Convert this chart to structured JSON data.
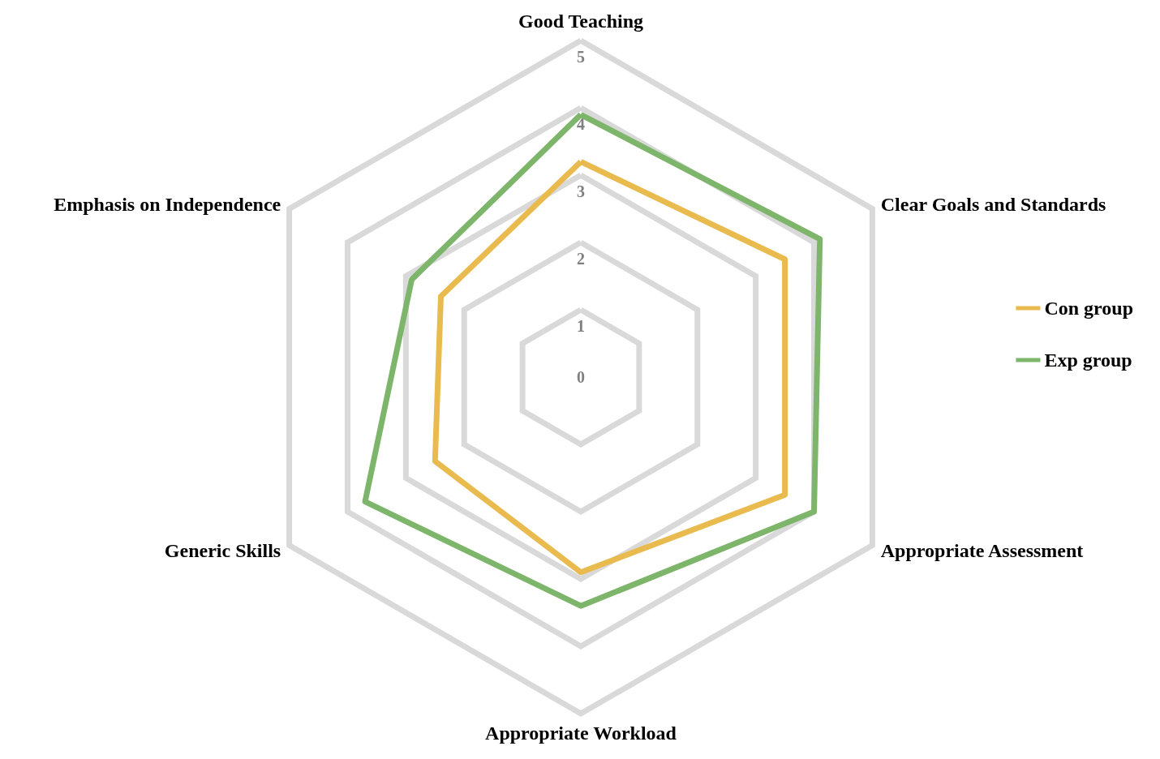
{
  "chart_data": {
    "type": "radar",
    "categories": [
      "Good Teaching",
      "Clear Goals and Standards",
      "Appropriate Assessment",
      "Appropriate Workload",
      "Generic Skills",
      "Emphasis on Independence"
    ],
    "series": [
      {
        "name": "Con group",
        "color": "#e9bb4f",
        "values": [
          3.2,
          3.5,
          3.5,
          2.9,
          2.5,
          2.4
        ]
      },
      {
        "name": "Exp group",
        "color": "#7db56a",
        "values": [
          3.9,
          4.1,
          4.0,
          3.4,
          3.7,
          2.9
        ]
      }
    ],
    "ylim": [
      0,
      5
    ],
    "yticks": [
      0,
      1,
      2,
      3,
      4,
      5
    ],
    "legend": "right",
    "marker": "none",
    "grid": true
  }
}
